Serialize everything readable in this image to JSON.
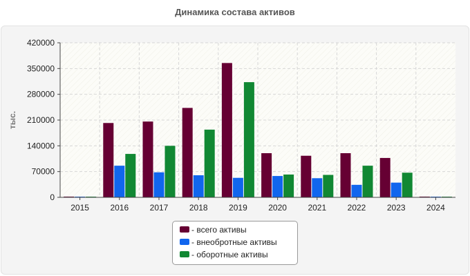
{
  "chart_data": {
    "type": "bar",
    "title": "Динамика состава активов",
    "ylabel": "тыс.",
    "xlabel": "",
    "categories": [
      "2015",
      "2016",
      "2017",
      "2018",
      "2019",
      "2020",
      "2021",
      "2022",
      "2023",
      "2024"
    ],
    "ylim": [
      0,
      420000
    ],
    "yticks": [
      0,
      70000,
      140000,
      210000,
      280000,
      350000,
      420000
    ],
    "grid": true,
    "legend_position": "bottom-center",
    "series": [
      {
        "name": "всего активы",
        "color": "#660033",
        "values": [
          2000,
          202000,
          206000,
          243000,
          365000,
          120000,
          113000,
          120000,
          107000,
          2000
        ]
      },
      {
        "name": "внеобротные активы",
        "color": "#1166ee",
        "values": [
          1000,
          86000,
          68000,
          60000,
          53000,
          58000,
          52000,
          34000,
          40000,
          1000
        ]
      },
      {
        "name": "оборотные активы",
        "color": "#118833",
        "values": [
          1000,
          118000,
          140000,
          184000,
          313000,
          62000,
          61000,
          86000,
          67000,
          1000
        ]
      }
    ]
  },
  "legend": {
    "prefix": "- "
  }
}
